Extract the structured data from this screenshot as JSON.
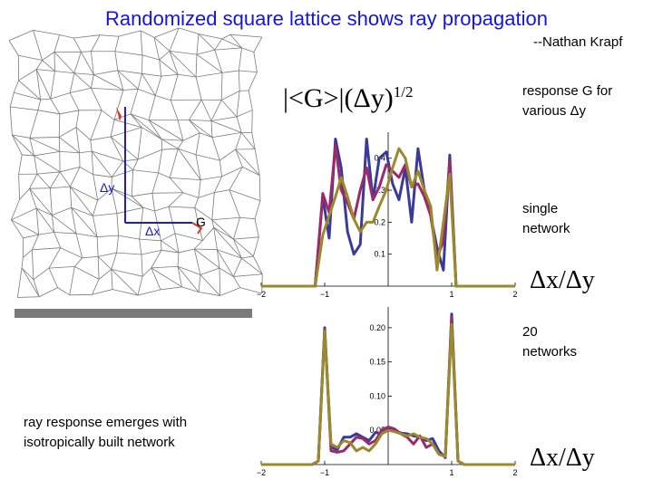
{
  "title": "Randomized square lattice shows ray propagation",
  "author": "--Nathan Krapf",
  "formula": {
    "main": "|<G>|(Δy)",
    "exponent": "1/2"
  },
  "lattice": {
    "label_dx": "Δx",
    "label_dy": "Δy",
    "label_g": "G"
  },
  "notes": {
    "response_line1": "response G for",
    "response_line2": "various Δy",
    "single_line1": "single",
    "single_line2": "network",
    "twenty_line1": "20",
    "twenty_line2": "networks",
    "bottom_line1": "ray response emerges with",
    "bottom_line2": "isotropically built network"
  },
  "axis_label_top": "Δx/Δy",
  "axis_label_bottom": "Δx/Δy",
  "colors": {
    "title": "#1414e0",
    "series": [
      "#3a3a9a",
      "#9a2a6a",
      "#9a8a2a"
    ],
    "lattice": "#7a7a7a",
    "arrow": "#1a1ae0",
    "marker": "#e83030"
  },
  "chart_data": [
    {
      "type": "line",
      "xlim": [
        -2,
        2
      ],
      "ylim": [
        0,
        0.47
      ],
      "x_ticks": [
        "−2",
        "−1",
        "1",
        "2"
      ],
      "x_tick_values": [
        -2,
        -1,
        1,
        2
      ],
      "y_ticks": [
        "0.1",
        "0.2",
        "0.3",
        "0.4"
      ],
      "y_tick_values": [
        0.1,
        0.2,
        0.3,
        0.4
      ],
      "series": [
        {
          "points": [
            [
              -2,
              0
            ],
            [
              -1.15,
              0
            ],
            [
              -1.03,
              0.28
            ],
            [
              -0.93,
              0.15
            ],
            [
              -0.83,
              0.46
            ],
            [
              -0.74,
              0.37
            ],
            [
              -0.64,
              0.17
            ],
            [
              -0.54,
              0.1
            ],
            [
              -0.44,
              0.13
            ],
            [
              -0.34,
              0.46
            ],
            [
              -0.24,
              0.27
            ],
            [
              -0.14,
              0.4
            ],
            [
              -0.03,
              0.42
            ],
            [
              0.07,
              0.32
            ],
            [
              0.17,
              0.27
            ],
            [
              0.27,
              0.37
            ],
            [
              0.37,
              0.2
            ],
            [
              0.47,
              0.43
            ],
            [
              0.57,
              0.3
            ],
            [
              0.67,
              0.22
            ],
            [
              0.77,
              0.12
            ],
            [
              0.87,
              0.05
            ],
            [
              0.97,
              0.41
            ],
            [
              1.07,
              0
            ],
            [
              2,
              0
            ]
          ]
        },
        {
          "points": [
            [
              -2,
              0
            ],
            [
              -1.15,
              0
            ],
            [
              -1.03,
              0.29
            ],
            [
              -0.93,
              0.23
            ],
            [
              -0.83,
              0.44
            ],
            [
              -0.74,
              0.3
            ],
            [
              -0.64,
              0.26
            ],
            [
              -0.54,
              0.21
            ],
            [
              -0.44,
              0.3
            ],
            [
              -0.34,
              0.37
            ],
            [
              -0.24,
              0.27
            ],
            [
              -0.14,
              0.31
            ],
            [
              -0.03,
              0.38
            ],
            [
              0.07,
              0.36
            ],
            [
              0.17,
              0.34
            ],
            [
              0.27,
              0.38
            ],
            [
              0.37,
              0.31
            ],
            [
              0.47,
              0.32
            ],
            [
              0.57,
              0.28
            ],
            [
              0.67,
              0.22
            ],
            [
              0.77,
              0.09
            ],
            [
              0.87,
              0.14
            ],
            [
              0.97,
              0.39
            ],
            [
              1.07,
              0
            ],
            [
              2,
              0
            ]
          ]
        },
        {
          "points": [
            [
              -2,
              0
            ],
            [
              -1.15,
              0
            ],
            [
              -1.03,
              0.16
            ],
            [
              -0.93,
              0.22
            ],
            [
              -0.83,
              0.28
            ],
            [
              -0.74,
              0.34
            ],
            [
              -0.64,
              0.28
            ],
            [
              -0.54,
              0.21
            ],
            [
              -0.44,
              0.17
            ],
            [
              -0.34,
              0.2
            ],
            [
              -0.24,
              0.2
            ],
            [
              -0.14,
              0.25
            ],
            [
              -0.03,
              0.3
            ],
            [
              0.07,
              0.37
            ],
            [
              0.17,
              0.43
            ],
            [
              0.27,
              0.4
            ],
            [
              0.37,
              0.31
            ],
            [
              0.47,
              0.36
            ],
            [
              0.57,
              0.3
            ],
            [
              0.67,
              0.25
            ],
            [
              0.77,
              0.05
            ],
            [
              0.87,
              0.2
            ],
            [
              0.97,
              0.35
            ],
            [
              1.07,
              0
            ],
            [
              2,
              0
            ]
          ]
        }
      ]
    },
    {
      "type": "line",
      "xlim": [
        -2,
        2
      ],
      "ylim": [
        0,
        0.225
      ],
      "x_ticks": [
        "−2",
        "−1",
        "1",
        "2"
      ],
      "x_tick_values": [
        -2,
        -1,
        1,
        2
      ],
      "y_ticks": [
        "0.05",
        "0.10",
        "0.15",
        "0.20"
      ],
      "y_tick_values": [
        0.05,
        0.1,
        0.15,
        0.2
      ],
      "series": [
        {
          "points": [
            [
              -2,
              0
            ],
            [
              -1.2,
              0
            ],
            [
              -1.1,
              0.005
            ],
            [
              -1.0,
              0.2
            ],
            [
              -0.9,
              0.025
            ],
            [
              -0.8,
              0.022
            ],
            [
              -0.7,
              0.04
            ],
            [
              -0.6,
              0.04
            ],
            [
              -0.5,
              0.045
            ],
            [
              -0.4,
              0.04
            ],
            [
              -0.3,
              0.035
            ],
            [
              -0.2,
              0.047
            ],
            [
              -0.1,
              0.045
            ],
            [
              0,
              0.052
            ],
            [
              0.1,
              0.05
            ],
            [
              0.2,
              0.046
            ],
            [
              0.3,
              0.045
            ],
            [
              0.4,
              0.042
            ],
            [
              0.5,
              0.04
            ],
            [
              0.6,
              0.035
            ],
            [
              0.7,
              0.038
            ],
            [
              0.8,
              0.02
            ],
            [
              0.9,
              0.01
            ],
            [
              1.0,
              0.22
            ],
            [
              1.1,
              0.005
            ],
            [
              1.2,
              0
            ],
            [
              2,
              0
            ]
          ]
        },
        {
          "points": [
            [
              -2,
              0
            ],
            [
              -1.2,
              0
            ],
            [
              -1.1,
              0.005
            ],
            [
              -1.0,
              0.198
            ],
            [
              -0.9,
              0.02
            ],
            [
              -0.8,
              0.018
            ],
            [
              -0.7,
              0.02
            ],
            [
              -0.6,
              0.03
            ],
            [
              -0.5,
              0.04
            ],
            [
              -0.4,
              0.038
            ],
            [
              -0.3,
              0.03
            ],
            [
              -0.2,
              0.035
            ],
            [
              -0.1,
              0.05
            ],
            [
              0,
              0.055
            ],
            [
              0.1,
              0.052
            ],
            [
              0.2,
              0.045
            ],
            [
              0.3,
              0.04
            ],
            [
              0.4,
              0.03
            ],
            [
              0.5,
              0.042
            ],
            [
              0.6,
              0.025
            ],
            [
              0.7,
              0.03
            ],
            [
              0.8,
              0.015
            ],
            [
              0.9,
              0.012
            ],
            [
              1.0,
              0.215
            ],
            [
              1.1,
              0.005
            ],
            [
              1.2,
              0
            ],
            [
              2,
              0
            ]
          ]
        },
        {
          "points": [
            [
              -2,
              0
            ],
            [
              -1.2,
              0
            ],
            [
              -1.1,
              0.005
            ],
            [
              -1.0,
              0.195
            ],
            [
              -0.9,
              0.03
            ],
            [
              -0.8,
              0.025
            ],
            [
              -0.7,
              0.035
            ],
            [
              -0.6,
              0.032
            ],
            [
              -0.5,
              0.02
            ],
            [
              -0.4,
              0.025
            ],
            [
              -0.3,
              0.02
            ],
            [
              -0.2,
              0.03
            ],
            [
              -0.1,
              0.045
            ],
            [
              0,
              0.05
            ],
            [
              0.1,
              0.048
            ],
            [
              0.2,
              0.045
            ],
            [
              0.3,
              0.042
            ],
            [
              0.4,
              0.045
            ],
            [
              0.5,
              0.04
            ],
            [
              0.6,
              0.038
            ],
            [
              0.7,
              0.03
            ],
            [
              0.8,
              0.015
            ],
            [
              0.9,
              0.012
            ],
            [
              1.0,
              0.205
            ],
            [
              1.1,
              0.005
            ],
            [
              1.2,
              0
            ],
            [
              2,
              0
            ]
          ]
        }
      ]
    }
  ]
}
